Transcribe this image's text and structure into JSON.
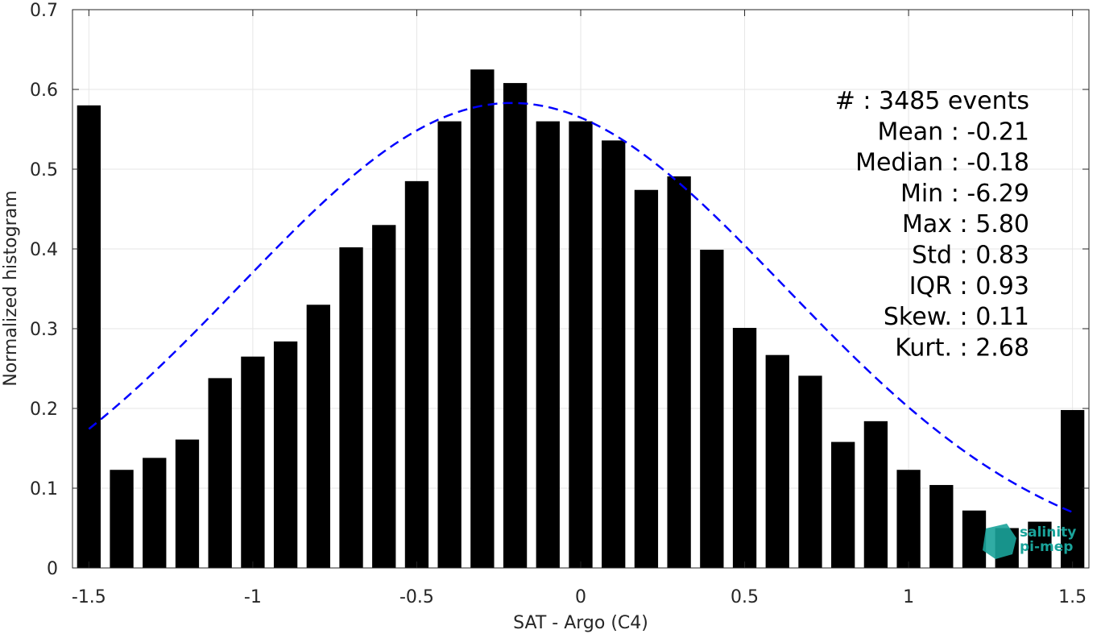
{
  "chart_data": {
    "type": "bar",
    "xlabel": "SAT - Argo (C4)",
    "ylabel": "Normalized histogram",
    "xlim": [
      -1.55,
      1.55
    ],
    "ylim": [
      0,
      0.7
    ],
    "grid": true,
    "x_ticks": [
      -1.5,
      -1,
      -0.5,
      0,
      0.5,
      1,
      1.5
    ],
    "x_tick_labels": [
      "-1.5",
      "-1",
      "-0.5",
      "0",
      "0.5",
      "1",
      "1.5"
    ],
    "y_ticks": [
      0,
      0.1,
      0.2,
      0.3,
      0.4,
      0.5,
      0.6,
      0.7
    ],
    "y_tick_labels": [
      "0",
      "0.1",
      "0.2",
      "0.3",
      "0.4",
      "0.5",
      "0.6",
      "0.7"
    ],
    "bar_color": "#000000",
    "fit_color": "#0000ff",
    "bars": {
      "x": [
        -1.5,
        -1.4,
        -1.3,
        -1.2,
        -1.1,
        -1.0,
        -0.9,
        -0.8,
        -0.7,
        -0.6,
        -0.5,
        -0.4,
        -0.3,
        -0.2,
        -0.1,
        0.0,
        0.1,
        0.2,
        0.3,
        0.4,
        0.5,
        0.6,
        0.7,
        0.8,
        0.9,
        1.0,
        1.1,
        1.2,
        1.3,
        1.4,
        1.5
      ],
      "values": [
        0.58,
        0.123,
        0.138,
        0.161,
        0.238,
        0.265,
        0.284,
        0.33,
        0.402,
        0.43,
        0.485,
        0.56,
        0.625,
        0.608,
        0.56,
        0.56,
        0.536,
        0.474,
        0.491,
        0.399,
        0.301,
        0.267,
        0.241,
        0.158,
        0.184,
        0.123,
        0.104,
        0.072,
        0.05,
        0.058,
        0.198
      ]
    },
    "gaussian_fit": {
      "mean": -0.21,
      "std": 0.83,
      "x_range": [
        -1.5,
        1.5
      ],
      "style": "dashed"
    },
    "stats": [
      {
        "label": "#",
        "sep": " : ",
        "value": "3485 events"
      },
      {
        "label": "Mean",
        "sep": " : ",
        "value": "-0.21"
      },
      {
        "label": "Median",
        "sep": " : ",
        "value": "-0.18"
      },
      {
        "label": "Min",
        "sep": " : ",
        "value": "-6.29"
      },
      {
        "label": "Max",
        "sep": " : ",
        "value": "5.80"
      },
      {
        "label": "Std",
        "sep": " : ",
        "value": "0.83"
      },
      {
        "label": "IQR",
        "sep": " : ",
        "value": "0.93"
      },
      {
        "label": "Skew.",
        "sep": " : ",
        "value": "0.11"
      },
      {
        "label": "Kurt.",
        "sep": " : ",
        "value": "2.68"
      }
    ]
  },
  "logo": {
    "line1": "salinity",
    "line2": "pi-mep",
    "color": "#1aa39a"
  }
}
